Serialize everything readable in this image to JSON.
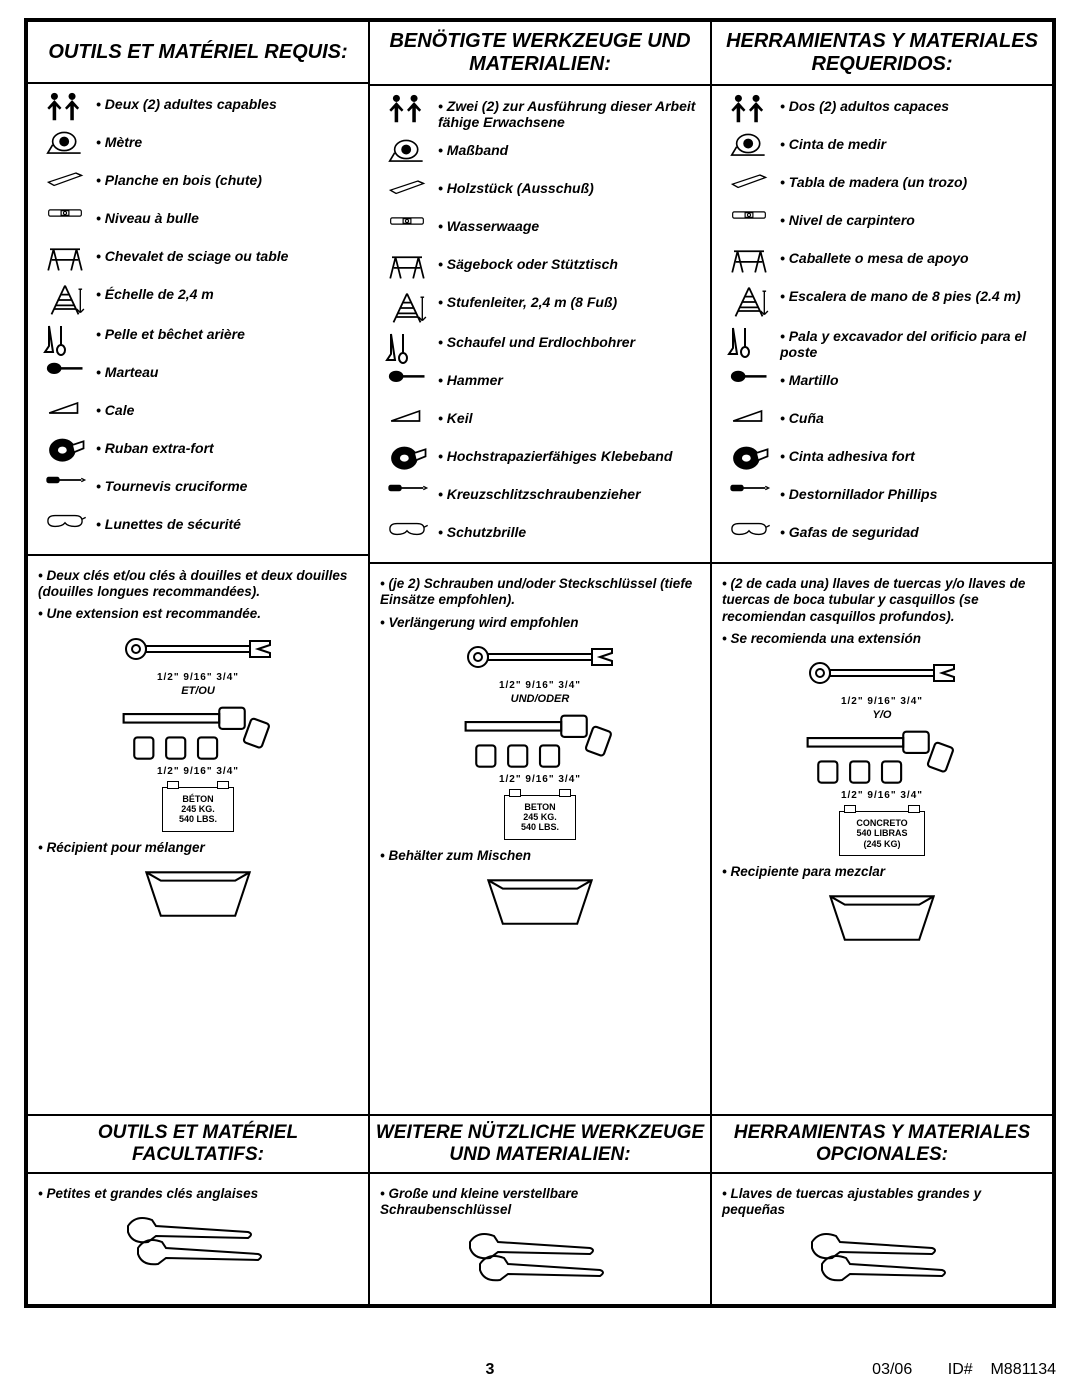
{
  "footer": {
    "page": "3",
    "date": "03/06",
    "id_label": "ID#",
    "id": "M881134"
  },
  "wrench_sizes": "1/2\"   9/16\"   3/4\"",
  "columns": [
    {
      "header": "OUTILS ET MATÉRIEL REQUIS:",
      "subheader": "OUTILS ET MATÉRIEL FACULTATIFS:",
      "items": [
        "Deux (2) adultes capables",
        "Mètre",
        "Planche en bois (chute)",
        "Niveau à bulle",
        "Chevalet de sciage ou table",
        "Échelle de 2,4 m",
        "Pelle et bêchet arière",
        "Marteau",
        "Cale",
        "Ruban extra-fort",
        "Tournevis cruciforme",
        "Lunettes de sécurité"
      ],
      "extra": [
        "Deux clés et/ou clés à douilles et deux douilles (douilles longues recommandées).",
        "Une extension est recommandée."
      ],
      "conj": "ET/OU",
      "bag": "BÉTON\n245 KG.\n540 LBS.",
      "mix": "Récipient pour mélanger",
      "optional": "Petites et grandes clés anglaises"
    },
    {
      "header": "BENÖTIGTE WERKZEUGE UND MATERIALIEN:",
      "subheader": "WEITERE NÜTZLICHE WERKZEUGE UND MATERIALIEN:",
      "items": [
        "Zwei (2) zur Ausführung dieser Arbeit fähige Erwachsene",
        "Maßband",
        "Holzstück (Ausschuß)",
        "Wasserwaage",
        "Sägebock oder Stütztisch",
        "Stufenleiter, 2,4 m (8 Fuß)",
        "Schaufel und Erdlochbohrer",
        "Hammer",
        "Keil",
        "Hochstrapazierfähiges Klebeband",
        "Kreuzschlitzschraubenzieher",
        "Schutzbrille"
      ],
      "extra": [
        "(je 2) Schrauben und/oder Steckschlüssel (tiefe Einsätze empfohlen).",
        "Verlängerung wird empfohlen"
      ],
      "conj": "UND/ODER",
      "bag": "BETON\n245 KG.\n540 LBS.",
      "mix": "Behälter zum Mischen",
      "optional": "Große und kleine verstellbare Schraubenschlüssel"
    },
    {
      "header": "HERRAMIENTAS Y MATERIALES REQUERIDOS:",
      "subheader": "HERRAMIENTAS Y MATERIALES OPCIONALES:",
      "items": [
        "Dos (2) adultos capaces",
        "Cinta de medir",
        "Tabla de madera (un trozo)",
        "Nivel de carpintero",
        "Caballete o mesa de apoyo",
        "Escalera de mano de 8 pies (2.4 m)",
        "Pala y excavador del orificio para el poste",
        "Martillo",
        "Cuña",
        "Cinta adhesiva fort",
        "Destornillador Phillips",
        "Gafas de seguridad"
      ],
      "extra": [
        "(2 de cada una) llaves de tuercas y/o llaves de tuercas de boca tubular y casquillos (se recomiendan casquillos profundos).",
        "Se recomienda una extensión"
      ],
      "conj": "Y/O",
      "bag": "CONCRETO\n540 LIBRAS\n(245 KG)",
      "mix": "Recipiente para mezclar",
      "optional": "Llaves de tuercas ajustables grandes y pequeñas"
    }
  ]
}
